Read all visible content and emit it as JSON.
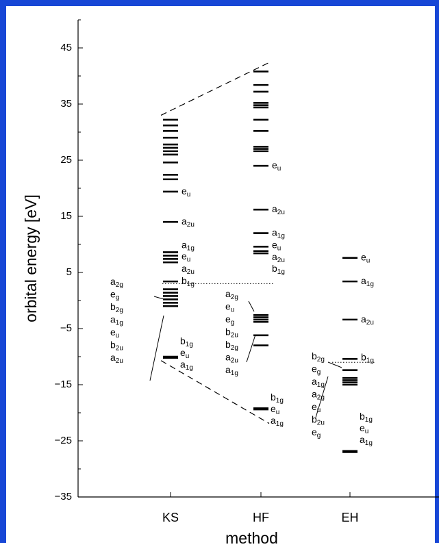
{
  "chart_data": {
    "type": "scatter",
    "ylabel": "orbital energy [eV]",
    "xlabel": "method",
    "ylim": [
      -35,
      50
    ],
    "yticks": [
      -35,
      -25,
      -15,
      -5,
      5,
      15,
      25,
      35,
      45
    ],
    "categories": [
      "KS",
      "HF",
      "EH"
    ],
    "levels": {
      "KS": [
        32.2,
        31.2,
        30.2,
        29.0,
        27.8,
        27.2,
        26.6,
        26.0,
        24.6,
        22.4,
        21.6,
        19.4,
        14.0,
        8.6,
        8.0,
        7.4,
        6.8,
        3.4,
        2.0,
        1.4,
        0.8,
        0.2,
        -0.4,
        -1.0,
        -10.0,
        -10.2
      ],
      "HF": [
        40.8,
        38.4,
        37.2,
        35.2,
        34.8,
        34.4,
        32.2,
        30.2,
        27.4,
        27.0,
        26.6,
        24.0,
        16.2,
        12.0,
        9.6,
        8.8,
        8.4,
        -2.6,
        -3.0,
        -3.4,
        -3.8,
        -6.2,
        -8.0,
        -19.2,
        -19.4
      ],
      "EH": [
        7.6,
        3.4,
        -3.4,
        -10.4,
        -12.4,
        -13.8,
        -14.2,
        -14.6,
        -15.0,
        -26.8,
        -27.0
      ]
    },
    "groups": {
      "KS": {
        "upper": [
          {
            "y": 19.4,
            "sym": "e",
            "sub": "u"
          },
          {
            "y": 14.0,
            "sym": "a",
            "sub": "2u"
          },
          {
            "y": 9.8,
            "sym": "a",
            "sub": "1g"
          },
          {
            "y": 7.8,
            "sym": "e",
            "sub": "u"
          },
          {
            "y": 5.6,
            "sym": "a",
            "sub": "2u"
          },
          {
            "y": 3.4,
            "sym": "b",
            "sub": "1g"
          }
        ],
        "occupied_labels": [
          {
            "sym": "a",
            "sub": "2g"
          },
          {
            "sym": "e",
            "sub": "g"
          },
          {
            "sym": "b",
            "sub": "2g"
          },
          {
            "sym": "a",
            "sub": "1g"
          },
          {
            "sym": "e",
            "sub": "u"
          },
          {
            "sym": "b",
            "sub": "2u"
          },
          {
            "sym": "a",
            "sub": "2u"
          }
        ],
        "core_labels": [
          {
            "sym": "b",
            "sub": "1g"
          },
          {
            "sym": "e",
            "sub": "u"
          },
          {
            "sym": "a",
            "sub": "1g"
          }
        ]
      },
      "HF": {
        "upper": [
          {
            "y": 24.0,
            "sym": "e",
            "sub": "u"
          },
          {
            "y": 16.2,
            "sym": "a",
            "sub": "2u"
          },
          {
            "y": 12.0,
            "sym": "a",
            "sub": "1g"
          },
          {
            "y": 9.8,
            "sym": "e",
            "sub": "u"
          },
          {
            "y": 7.7,
            "sym": "a",
            "sub": "2u"
          },
          {
            "y": 5.6,
            "sym": "b",
            "sub": "1g"
          }
        ],
        "occupied_labels": [
          {
            "sym": "a",
            "sub": "2g"
          },
          {
            "sym": "e",
            "sub": "u"
          },
          {
            "sym": "e",
            "sub": "g"
          },
          {
            "sym": "b",
            "sub": "2u"
          },
          {
            "sym": "b",
            "sub": "2g"
          },
          {
            "sym": "a",
            "sub": "2u"
          },
          {
            "sym": "a",
            "sub": "1g"
          }
        ],
        "core_labels": [
          {
            "sym": "b",
            "sub": "1g"
          },
          {
            "sym": "e",
            "sub": "u"
          },
          {
            "sym": "a",
            "sub": "1g"
          }
        ]
      },
      "EH": {
        "upper": [
          {
            "y": 7.6,
            "sym": "e",
            "sub": "u"
          },
          {
            "y": 3.4,
            "sym": "a",
            "sub": "1g"
          },
          {
            "y": -3.4,
            "sym": "a",
            "sub": "2u"
          },
          {
            "y": -10.2,
            "sym": "b",
            "sub": "1g"
          }
        ],
        "occupied_labels": [
          {
            "sym": "b",
            "sub": "2g"
          },
          {
            "sym": "e",
            "sub": "g"
          },
          {
            "sym": "a",
            "sub": "1g"
          },
          {
            "sym": "a",
            "sub": "2g"
          },
          {
            "sym": "e",
            "sub": "u"
          },
          {
            "sym": "b",
            "sub": "2u"
          },
          {
            "sym": "e",
            "sub": "g"
          }
        ],
        "core_labels": [
          {
            "sym": "b",
            "sub": "1g"
          },
          {
            "sym": "e",
            "sub": "u"
          },
          {
            "sym": "a",
            "sub": "1g"
          }
        ]
      }
    },
    "homo_lumo_gap_lines": [
      {
        "from": "KS",
        "to": "HF",
        "y": 3.0
      },
      {
        "from": "EH",
        "to": "EH",
        "y": -11.0
      }
    ]
  }
}
